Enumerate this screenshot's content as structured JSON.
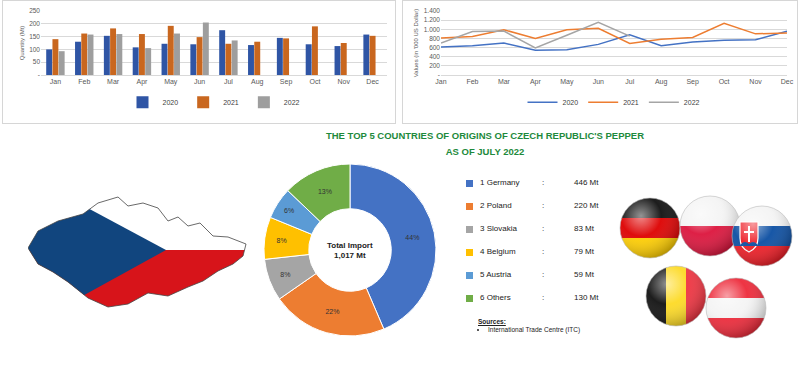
{
  "chart_data": [
    {
      "type": "bar",
      "ylabel": "Quantity (Mt)",
      "categories": [
        "Jan",
        "Feb",
        "Mar",
        "Apr",
        "May",
        "Jun",
        "Jul",
        "Aug",
        "Sep",
        "Oct",
        "Nov",
        "Dec"
      ],
      "series": [
        {
          "name": "2020",
          "color": "#2f55a5",
          "values": [
            100,
            130,
            153,
            108,
            122,
            120,
            175,
            117,
            145,
            120,
            113,
            158
          ]
        },
        {
          "name": "2021",
          "color": "#c9671f",
          "values": [
            140,
            162,
            182,
            160,
            192,
            148,
            122,
            130,
            143,
            190,
            125,
            153
          ]
        },
        {
          "name": "2022",
          "color": "#9e9e9e",
          "values": [
            93,
            158,
            160,
            105,
            162,
            205,
            135,
            null,
            null,
            null,
            null,
            null
          ]
        }
      ],
      "ylim": [
        0,
        250
      ],
      "yticks": [
        {
          "value": 0,
          "label": "-"
        },
        50,
        100,
        150,
        200,
        250
      ],
      "grid": true,
      "legend": "bottom"
    },
    {
      "type": "line",
      "ylabel": "Values (in '000 US Dollar)",
      "categories": [
        "Jan",
        "Feb",
        "Mar",
        "Apr",
        "May",
        "Jun",
        "Jul",
        "Aug",
        "Sep",
        "Oct",
        "Nov",
        "Dec"
      ],
      "series": [
        {
          "name": "2020",
          "color": "#4472c4",
          "line_style": "solid",
          "values": [
            610,
            640,
            700,
            540,
            550,
            670,
            880,
            640,
            720,
            760,
            770,
            960
          ]
        },
        {
          "name": "2021",
          "color": "#ed7d31",
          "line_style": "solid",
          "values": [
            810,
            840,
            990,
            800,
            990,
            1020,
            690,
            780,
            820,
            1130,
            900,
            920
          ]
        },
        {
          "name": "2022",
          "color": "#a5a5a5",
          "line_style": "solid",
          "values": [
            700,
            950,
            960,
            590,
            870,
            1150,
            850,
            null,
            null,
            null,
            null,
            null
          ]
        }
      ],
      "ylim": [
        0,
        1400
      ],
      "yticks": [
        {
          "value": 0,
          "label": "-"
        },
        200,
        400,
        600,
        800,
        {
          "value": 1000,
          "label": "1.000"
        },
        {
          "value": 1200,
          "label": "1.200"
        },
        {
          "value": 1400,
          "label": "1.400"
        }
      ],
      "grid": true,
      "legend": "bottom"
    },
    {
      "type": "pie",
      "title": "THE TOP 5 COUNTRIES OF ORIGINS OF CZECH REPUBLIC'S PEPPER",
      "subtitle": "AS OF JULY 2022",
      "categories": [
        "1 Germany",
        "2 Poland",
        "3 Slovakia",
        "4 Belgium",
        "5 Austria",
        "6 Others"
      ],
      "values": [
        44,
        22,
        8,
        8,
        6,
        13
      ],
      "value_labels": [
        "44%",
        "22%",
        "8%",
        "8%",
        "6%",
        "13%"
      ],
      "colors": [
        "#4472c4",
        "#ed7d31",
        "#a5a5a5",
        "#ffc000",
        "#5b9bd5",
        "#70ad47"
      ],
      "data_labels": true,
      "center_text": [
        "Total Import",
        "1,017 Mt"
      ],
      "amounts": [
        446,
        220,
        83,
        79,
        59,
        130
      ],
      "amount_labels": [
        "446 Mt",
        "220 Mt",
        "83 Mt",
        "79 Mt",
        "59 Mt",
        "130 Mt"
      ],
      "separator": ":",
      "legend": "right",
      "sources_title": "Sources:",
      "sources": [
        "International Trade Centre (ITC)"
      ]
    }
  ]
}
